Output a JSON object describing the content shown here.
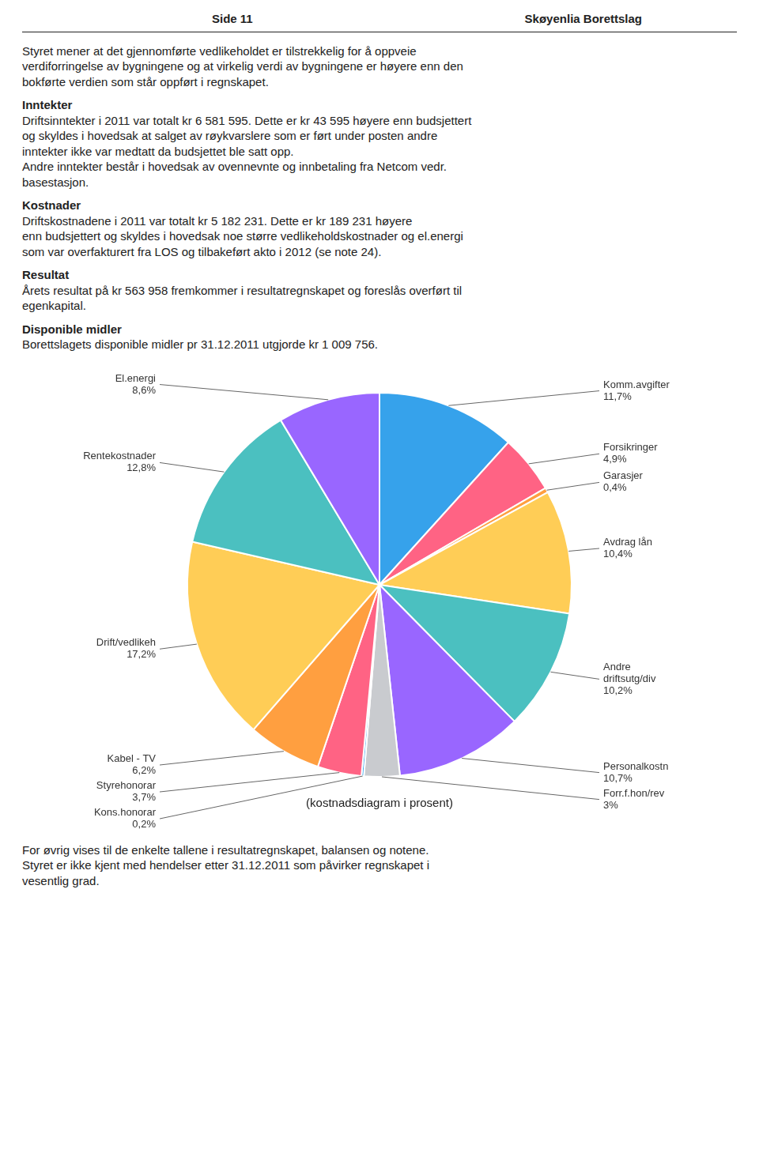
{
  "chart_data": {
    "type": "pie",
    "title": "(kostnadsdiagram i prosent)",
    "categories": [
      "Komm.avgifter",
      "Forsikringer",
      "Garasjer",
      "Avdrag lån",
      "Andre\ndriftsutg/div",
      "Personalkostn",
      "Forr.f.hon/rev",
      "Kons.honorar",
      "Styrehonorar",
      "Kabel - TV",
      "Drift/vedlikeh",
      "Rentekostnader",
      "El.energi"
    ],
    "values": [
      11.7,
      4.9,
      0.4,
      10.4,
      10.2,
      10.7,
      3.0,
      0.2,
      3.7,
      6.2,
      17.2,
      12.8,
      8.6
    ],
    "value_labels": [
      "11,7%",
      "4,9%",
      "0,4%",
      "10,4%",
      "10,2%",
      "10,7%",
      "3%",
      "0,2%",
      "3,7%",
      "6,2%",
      "17,2%",
      "12,8%",
      "8,6%"
    ],
    "data_labels": true,
    "annotations": {
      "header": [
        "Side 11",
        "Skøyenlia Borettslag"
      ],
      "above": [
        {
          "lines": [
            "Styret mener at det gjennomførte vedlikeholdet er tilstrekkelig for å oppveie",
            "verdiforringelse av bygningene og at virkelig verdi av bygningene er høyere enn den",
            "bokførte verdien som står oppført i regnskapet."
          ]
        },
        {
          "heading": "Inntekter",
          "lines": [
            "Driftsinntekter i 2011 var totalt kr 6 581 595. Dette er kr 43 595 høyere enn budsjettert",
            "og skyldes i hovedsak at salget av røykvarslere som er ført under posten andre",
            "inntekter ikke var medtatt da budsjettet ble satt opp.",
            "Andre inntekter består i hovedsak av ovennevnte og innbetaling fra Netcom vedr.",
            "basestasjon."
          ]
        },
        {
          "heading": "Kostnader",
          "lines": [
            "Driftskostnadene i 2011 var totalt kr 5 182 231. Dette er kr 189 231 høyere",
            "enn budsjettert og skyldes i hovedsak noe større vedlikeholdskostnader og el.energi",
            "som var overfakturert fra LOS og tilbakeført akto i 2012 (se note 24)."
          ]
        },
        {
          "heading": "Resultat",
          "lines": [
            "Årets resultat på kr 563 958 fremkommer i resultatregnskapet og foreslås overført til",
            "egenkapital."
          ]
        },
        {
          "heading": "Disponible midler",
          "lines": [
            "Borettslagets disponible midler pr 31.12.2011 utgjorde kr 1 009 756."
          ]
        }
      ],
      "below": [
        {
          "lines": [
            "For øvrig vises til de enkelte tallene i resultatregnskapet, balansen og notene.",
            "Styret er ikke kjent med hendelser etter 31.12.2011 som påvirker regnskapet i",
            "vesentlig grad."
          ]
        }
      ]
    }
  }
}
